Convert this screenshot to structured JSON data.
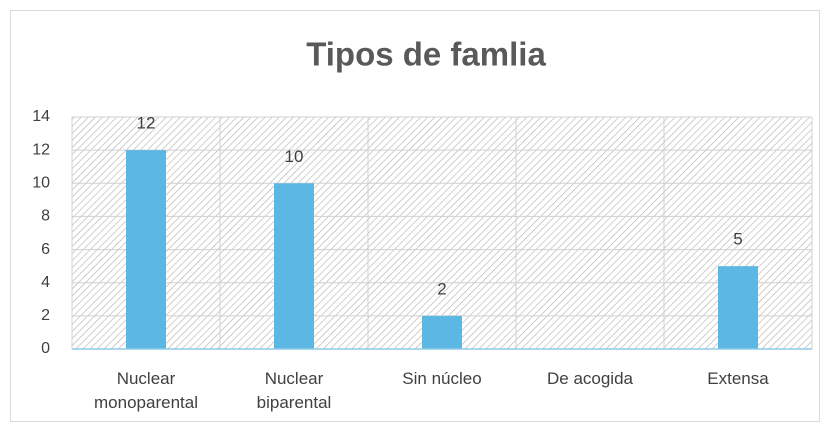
{
  "chart_data": {
    "type": "bar",
    "title": "Tipos de famlia",
    "categories": [
      "Nuclear monoparental",
      "Nuclear biparental",
      "Sin núcleo",
      "De acogida",
      "Extensa"
    ],
    "values": [
      12,
      10,
      2,
      0,
      5
    ],
    "value_labels": [
      "12",
      "10",
      "2",
      null,
      "5"
    ],
    "color": "#5db7e3",
    "ylim": [
      0,
      14
    ],
    "yticks": [
      0,
      2,
      4,
      6,
      8,
      10,
      12,
      14
    ],
    "grid": true
  }
}
